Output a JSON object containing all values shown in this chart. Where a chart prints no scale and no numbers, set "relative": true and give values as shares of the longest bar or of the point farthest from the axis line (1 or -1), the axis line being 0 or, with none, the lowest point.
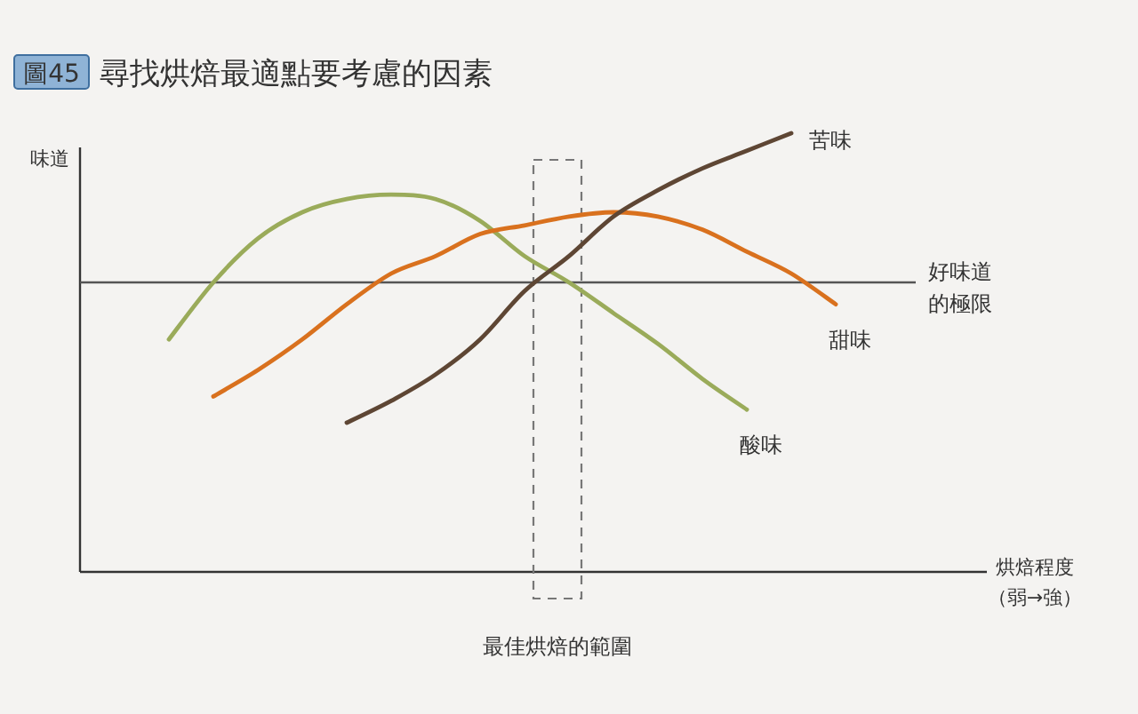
{
  "chart_data": {
    "type": "line",
    "title": "尋找烘焙最適點要考慮的因素",
    "annotations": [
      "圖45",
      "最佳烘焙的範圍"
    ],
    "xlabel": "烘焙程度（弱→強）",
    "ylabel": "味道",
    "relative": true,
    "categories": [
      null,
      null,
      null,
      null,
      null,
      null,
      null,
      null,
      null,
      null,
      null,
      null,
      null,
      null,
      null,
      null,
      null,
      null,
      null,
      null,
      null
    ],
    "series": [
      {
        "name": "酸味",
        "color": "#9aab5a",
        "values": [
          null,
          null,
          0.53,
          0.66,
          0.76,
          0.82,
          0.85,
          0.86,
          0.85,
          0.8,
          0.72,
          0.66,
          0.59,
          0.52,
          0.44,
          0.37,
          null,
          null,
          null,
          null,
          null
        ]
      },
      {
        "name": "甜味",
        "color": "#d9711e",
        "values": [
          null,
          null,
          null,
          0.4,
          0.46,
          0.53,
          0.61,
          0.68,
          0.72,
          0.77,
          0.79,
          0.81,
          0.82,
          0.81,
          0.78,
          0.73,
          0.68,
          0.61,
          null,
          null,
          null
        ]
      },
      {
        "name": "苦味",
        "color": "#5e4634",
        "values": [
          null,
          null,
          null,
          null,
          null,
          null,
          0.34,
          0.39,
          0.45,
          0.53,
          0.64,
          0.72,
          0.81,
          0.87,
          0.92,
          0.96,
          1.0,
          null,
          null,
          null,
          null
        ]
      }
    ],
    "ref_lines": [
      {
        "axis": "y",
        "value": 0.66,
        "label": "好味道的極限",
        "color": "#555555"
      }
    ]
  }
}
